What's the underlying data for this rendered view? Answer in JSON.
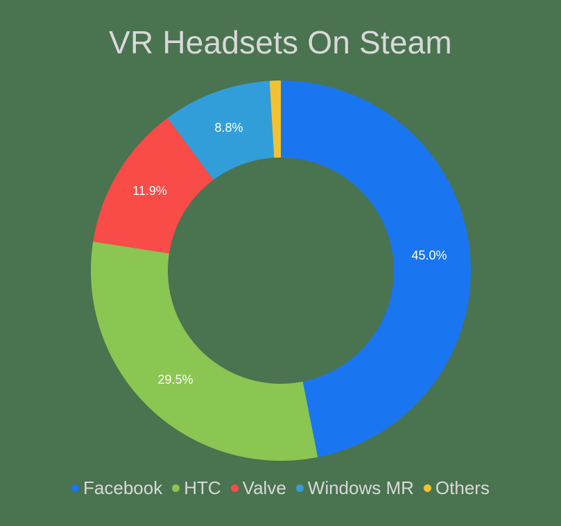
{
  "chart_data": {
    "type": "pie",
    "variant": "donut",
    "title": "VR Headsets On Steam",
    "categories": [
      "Facebook",
      "HTC",
      "Valve",
      "Windows MR",
      "Others"
    ],
    "values": [
      45.0,
      29.5,
      11.9,
      8.8,
      0.9
    ],
    "labels": [
      "45.0%",
      "29.5%",
      "11.9%",
      "8.8%",
      ""
    ],
    "colors": [
      "#1a76f0",
      "#8bc552",
      "#f94b47",
      "#329ed9",
      "#f2c232"
    ],
    "legend_position": "bottom",
    "start_angle_deg": 0,
    "direction": "clockwise",
    "note": "Labelled values sum to 95.2%; drawn slice angles are proportional to the labels, with Others visually ~0.9% and unlabelled.",
    "drawn_boundaries_deg": [
      0,
      168.8,
      278.8,
      323.4,
      356.6,
      360
    ]
  },
  "title": "VR Headsets On Steam",
  "legend": [
    {
      "label": "Facebook",
      "color": "#1a76f0"
    },
    {
      "label": "HTC",
      "color": "#8bc552"
    },
    {
      "label": "Valve",
      "color": "#f94b47"
    },
    {
      "label": "Windows MR",
      "color": "#329ed9"
    },
    {
      "label": "Others",
      "color": "#f2c232"
    }
  ],
  "slice_labels": {
    "facebook": "45.0%",
    "htc": "29.5%",
    "valve": "11.9%",
    "windows_mr": "8.8%"
  },
  "colors": {
    "background": "#4a7350",
    "text": "#d9d9d9"
  }
}
